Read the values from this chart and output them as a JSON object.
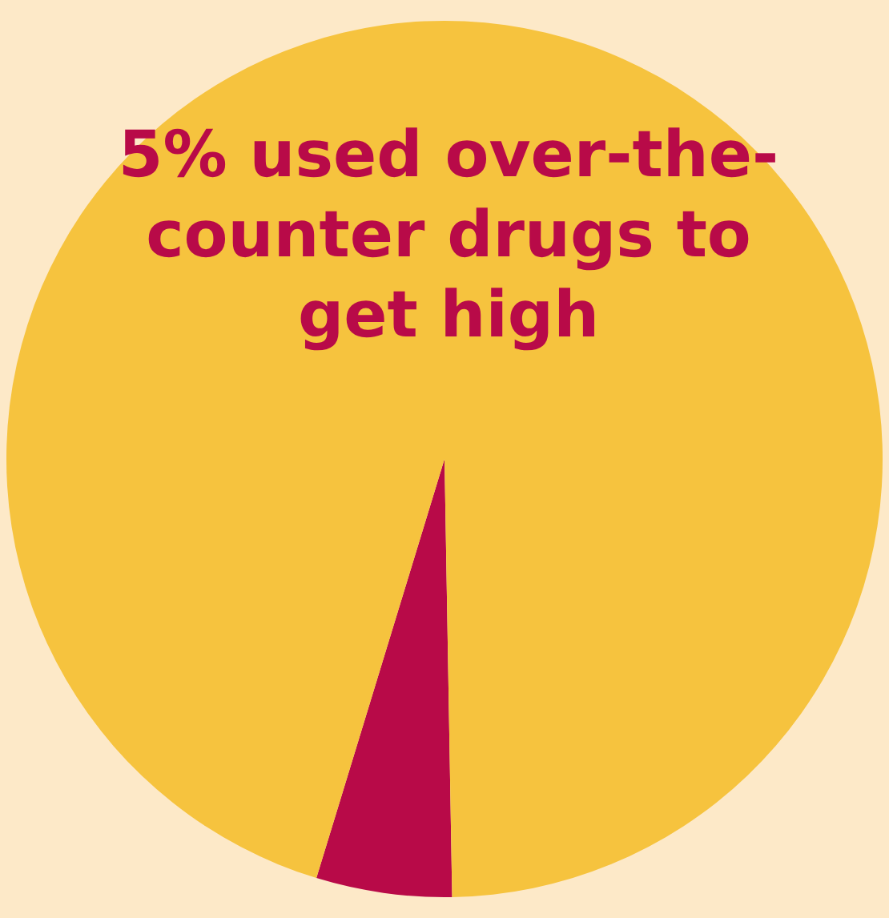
{
  "chart_data": {
    "type": "pie",
    "title": "5% used over-the-counter drugs to get high",
    "categories": [
      null,
      null
    ],
    "values": [
      5,
      95
    ],
    "colors": [
      "#b80a48",
      "#f6c33e"
    ],
    "legend": false
  }
}
